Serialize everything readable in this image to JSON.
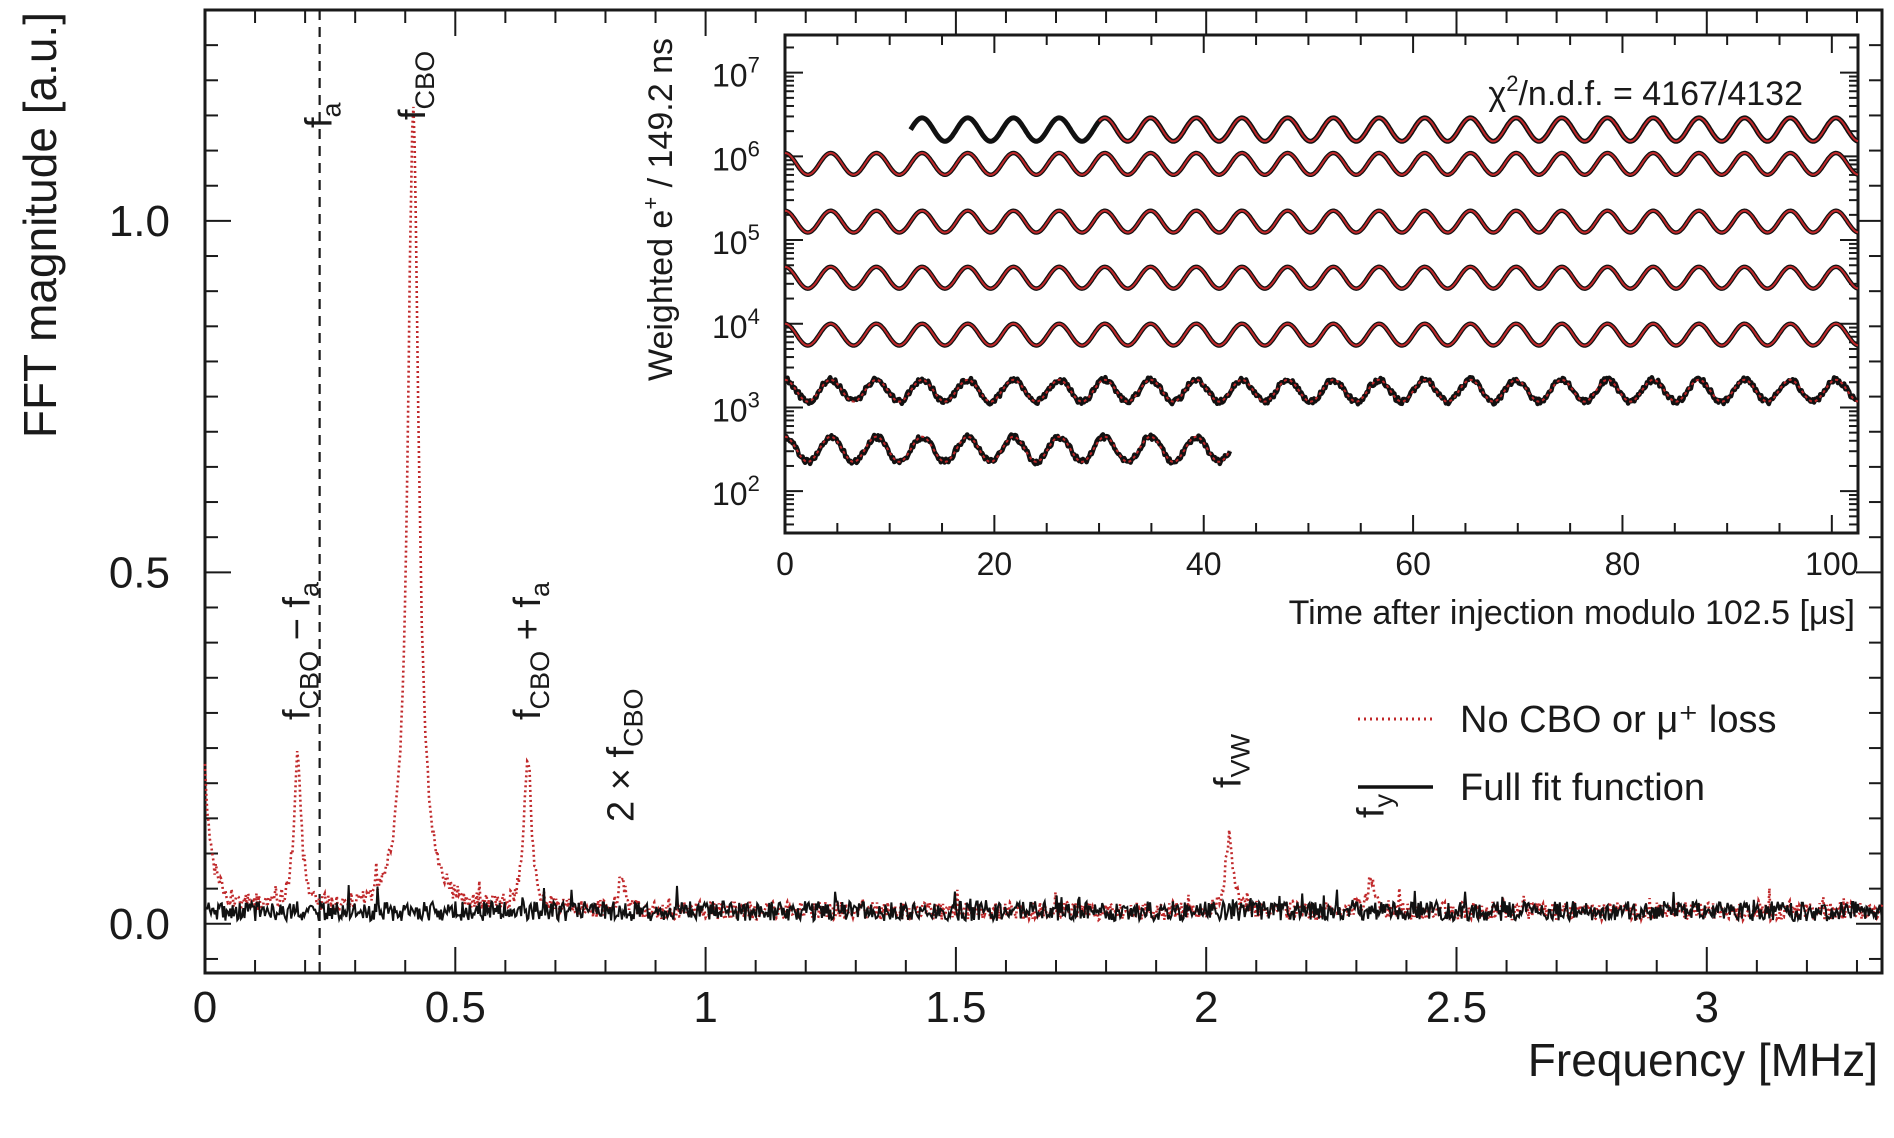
{
  "chart_data": [
    {
      "type": "line",
      "title": "",
      "xlabel": "Frequency [MHz]",
      "ylabel": "FFT magnitude [a.u.]",
      "xlim": [
        0,
        3.35
      ],
      "ylim": [
        -0.07,
        1.3
      ],
      "x_ticks": [
        {
          "value": 0,
          "label": "0"
        },
        {
          "value": 0.5,
          "label": "0.5"
        },
        {
          "value": 1,
          "label": "1"
        },
        {
          "value": 1.5,
          "label": "1.5"
        },
        {
          "value": 2,
          "label": "2"
        },
        {
          "value": 2.5,
          "label": "2.5"
        },
        {
          "value": 3,
          "label": "3"
        }
      ],
      "y_ticks": [
        {
          "value": 0.0,
          "label": "0.0"
        },
        {
          "value": 0.5,
          "label": "0.5"
        },
        {
          "value": 1.0,
          "label": "1.0"
        }
      ],
      "vertical_line": {
        "x": 0.229,
        "style": "dashed"
      },
      "peaks": [
        {
          "name": "fCBO − fa",
          "x": 0.185,
          "height": 0.22
        },
        {
          "name": "fCBO",
          "x": 0.416,
          "height": 1.14
        },
        {
          "name": "fCBO + fa",
          "x": 0.645,
          "height": 0.22
        },
        {
          "name": "2 × fCBO",
          "x": 0.832,
          "height": 0.045
        },
        {
          "name": "fVW",
          "x": 2.045,
          "height": 0.105
        },
        {
          "name": "fy",
          "x": 2.33,
          "height": 0.045
        }
      ],
      "annotations": [
        {
          "id": "fa",
          "base": "f",
          "sub": "a",
          "x": 0.229
        },
        {
          "id": "fcbo",
          "base": "f",
          "sub": "CBO",
          "x": 0.416
        },
        {
          "id": "fcbo_minus",
          "base": "f",
          "sub": "CBO",
          "rest_sep": " − ",
          "rest_base": "f",
          "rest_sub": "a",
          "x": 0.185
        },
        {
          "id": "fcbo_plus",
          "base": "f",
          "sub": "CBO",
          "rest_sep": " + ",
          "rest_base": "f",
          "rest_sub": "a",
          "x": 0.645
        },
        {
          "id": "two_fcbo",
          "prefix": "2 × f",
          "sub": "CBO",
          "x": 0.832
        },
        {
          "id": "fvw",
          "base": "f",
          "sub": "VW",
          "x": 2.045
        },
        {
          "id": "fy",
          "base": "f",
          "sub": "y",
          "x": 2.33
        }
      ],
      "series": [
        {
          "name": "No CBO or μ⁺ loss",
          "color": "#c0282a",
          "style": "dotted",
          "noise_level": 0.018
        },
        {
          "name": "Full fit function",
          "color": "#111111",
          "style": "solid",
          "noise_level": 0.018
        }
      ],
      "legend": {
        "placement": "right",
        "entries": [
          {
            "text": "No CBO or μ⁺ loss",
            "color": "#c0282a",
            "style": "dotted"
          },
          {
            "text": "Full fit function",
            "color": "#111111",
            "style": "solid"
          }
        ]
      }
    },
    {
      "type": "line",
      "title": "",
      "xlabel": "Time after injection modulo 102.5 [μs]",
      "ylabel_base": "Weighted e",
      "ylabel_sup": "+",
      "ylabel_rest": " / 149.2 ns",
      "xlim": [
        0,
        102.5
      ],
      "y_scale": "log",
      "ylim_exponent": [
        1.5,
        7.45
      ],
      "x_ticks": [
        {
          "value": 0,
          "label": "0"
        },
        {
          "value": 20,
          "label": "20"
        },
        {
          "value": 40,
          "label": "40"
        },
        {
          "value": 60,
          "label": "60"
        },
        {
          "value": 80,
          "label": "80"
        },
        {
          "value": 100,
          "label": "100"
        }
      ],
      "y_ticks": [
        {
          "exponent": 2,
          "base": "10",
          "sup": "2"
        },
        {
          "exponent": 3,
          "base": "10",
          "sup": "3"
        },
        {
          "exponent": 4,
          "base": "10",
          "sup": "4"
        },
        {
          "exponent": 5,
          "base": "10",
          "sup": "5"
        },
        {
          "exponent": 6,
          "base": "10",
          "sup": "6"
        },
        {
          "exponent": 7,
          "base": "10",
          "sup": "7"
        }
      ],
      "oscillation_period_us": 4.365,
      "wiggle_rows": [
        {
          "row": 1,
          "start_us": 12.0,
          "end_us": 102.5,
          "center_exp": 6.32,
          "amp_exp": 0.14,
          "fit_from_us": 30.0
        },
        {
          "row": 2,
          "start_us": 0.0,
          "end_us": 102.5,
          "center_exp": 5.91,
          "amp_exp": 0.13,
          "fit_from_us": 0.0
        },
        {
          "row": 3,
          "start_us": 0.0,
          "end_us": 102.5,
          "center_exp": 5.22,
          "amp_exp": 0.13,
          "fit_from_us": 0.0
        },
        {
          "row": 4,
          "start_us": 0.0,
          "end_us": 102.5,
          "center_exp": 4.55,
          "amp_exp": 0.13,
          "fit_from_us": 0.0
        },
        {
          "row": 5,
          "start_us": 0.0,
          "end_us": 102.5,
          "center_exp": 3.87,
          "amp_exp": 0.13,
          "fit_from_us": 0.0
        },
        {
          "row": 6,
          "start_us": 0.0,
          "end_us": 102.5,
          "center_exp": 3.2,
          "amp_exp": 0.13,
          "fit_from_us": 0.0
        },
        {
          "row": 7,
          "start_us": 0.0,
          "end_us": 42.5,
          "center_exp": 2.5,
          "amp_exp": 0.15,
          "fit_from_us": 0.0
        }
      ],
      "annotation": {
        "base": "χ",
        "sup": "2",
        "rest": "/n.d.f. = 4167/4132"
      }
    }
  ]
}
